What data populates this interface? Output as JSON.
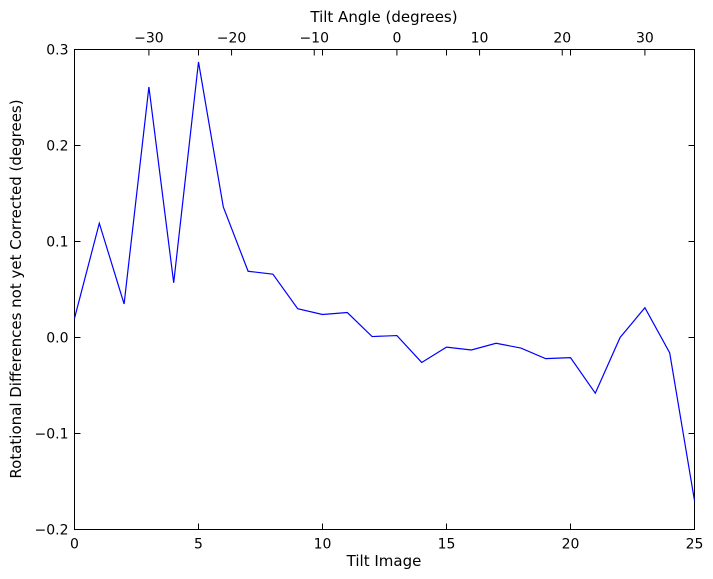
{
  "chart_data": {
    "type": "line",
    "title": "",
    "xlabel": "Tilt Image",
    "ylabel": "Rotational Differences not yet Corrected (degrees)",
    "x2label": "Tilt Angle (degrees)",
    "xlim": [
      0,
      25
    ],
    "ylim": [
      -0.2,
      0.3
    ],
    "x2lim": [
      -39,
      36
    ],
    "grid": false,
    "xticks": [
      0,
      5,
      10,
      15,
      20,
      25
    ],
    "xtick_labels": [
      "0",
      "5",
      "10",
      "15",
      "20",
      "25"
    ],
    "yticks": [
      -0.2,
      -0.1,
      0.0,
      0.1,
      0.2,
      0.3
    ],
    "ytick_labels": [
      "−0.2",
      "−0.1",
      "0.0",
      "0.1",
      "0.2",
      "0.3"
    ],
    "x2ticks": [
      -30,
      -20,
      -10,
      0,
      10,
      20,
      30
    ],
    "x2tick_labels": [
      "−30",
      "−20",
      "−10",
      "0",
      "10",
      "20",
      "30"
    ],
    "line_color": "#0000ff",
    "x": [
      0,
      1,
      2,
      3,
      4,
      5,
      6,
      7,
      8,
      9,
      10,
      11,
      12,
      13,
      14,
      15,
      16,
      17,
      18,
      19,
      20,
      21,
      22,
      23,
      24,
      25
    ],
    "y": [
      0.02,
      0.119,
      0.035,
      0.261,
      0.057,
      0.287,
      0.136,
      0.069,
      0.066,
      0.03,
      0.024,
      0.026,
      0.001,
      0.002,
      -0.026,
      -0.01,
      -0.013,
      -0.006,
      -0.011,
      -0.022,
      -0.021,
      -0.058,
      0.0,
      0.031,
      -0.016,
      -0.17
    ]
  }
}
